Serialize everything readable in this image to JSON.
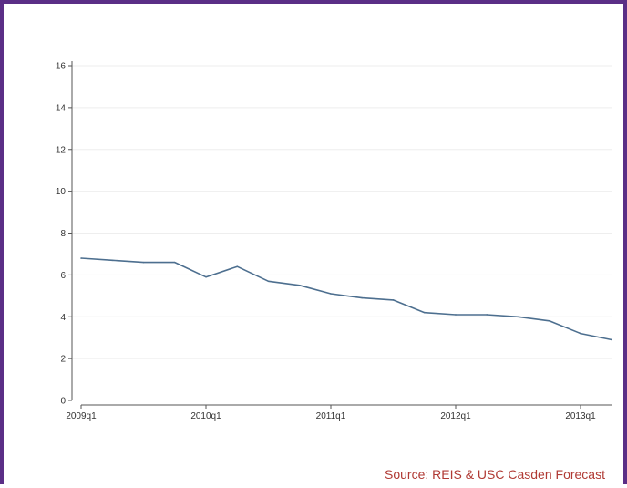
{
  "source_note": "Source:  REIS & USC Casden Forecast",
  "colors": {
    "frame": "#5b2e86",
    "line": "#4d6f8f",
    "grid": "#eeeeee",
    "axis": "#555555",
    "source_text": "#b03a34"
  },
  "chart_data": {
    "type": "line",
    "title": "",
    "xlabel": "",
    "ylabel": "",
    "ylim": [
      0,
      16
    ],
    "y_ticks": [
      0,
      2,
      4,
      6,
      8,
      10,
      12,
      14,
      16
    ],
    "x_tick_labels": [
      "2009q1",
      "2010q1",
      "2011q1",
      "2012q1",
      "2013q1"
    ],
    "grid": "horizontal",
    "legend": "none",
    "series": [
      {
        "x": [
          "2009q1",
          "2009q2",
          "2009q3",
          "2009q4",
          "2010q1",
          "2010q2",
          "2010q3",
          "2010q4",
          "2011q1",
          "2011q2",
          "2011q3",
          "2011q4",
          "2012q1",
          "2012q2",
          "2012q3",
          "2012q4",
          "2013q1",
          "2013q2"
        ],
        "values": [
          6.8,
          6.7,
          6.6,
          6.6,
          5.9,
          6.4,
          5.7,
          5.5,
          5.1,
          4.9,
          4.8,
          4.2,
          4.1,
          4.1,
          4.0,
          3.8,
          3.2,
          2.9
        ]
      }
    ]
  }
}
